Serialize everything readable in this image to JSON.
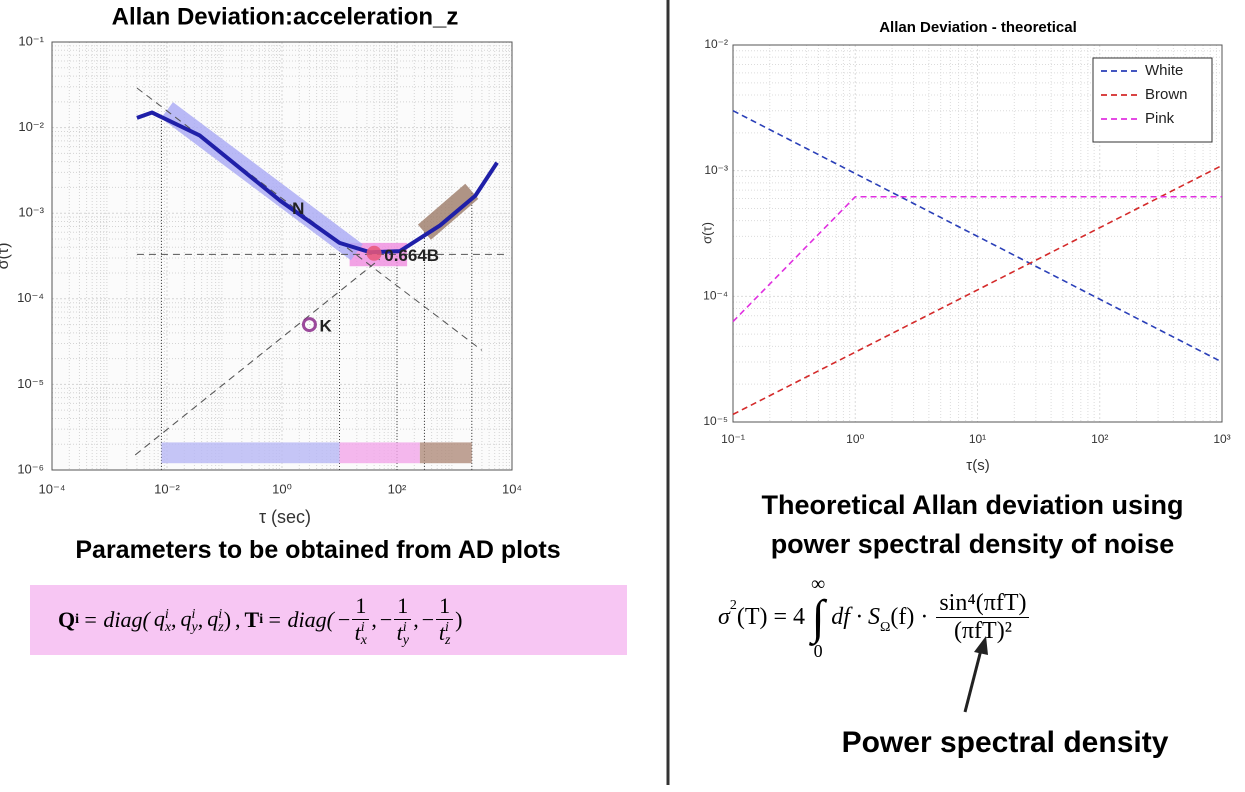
{
  "chart_data": [
    {
      "type": "line",
      "title": "Allan Deviation:acceleration_z",
      "xlabel": "τ (sec)",
      "ylabel": "σ(τ)",
      "xscale": "log",
      "yscale": "log",
      "grid": true,
      "minor_grid": true,
      "xlim": [
        0.0001,
        10000
      ],
      "ylim": [
        1e-06,
        0.1
      ],
      "xticks": [
        {
          "value": 0.0001,
          "label": "10⁻⁴"
        },
        {
          "value": 0.01,
          "label": "10⁻²"
        },
        {
          "value": 1,
          "label": "10⁰"
        },
        {
          "value": 100,
          "label": "10²"
        },
        {
          "value": 10000,
          "label": "10⁴"
        }
      ],
      "yticks": [
        {
          "value": 1e-06,
          "label": "10⁻⁶"
        },
        {
          "value": 1e-05,
          "label": "10⁻⁵"
        },
        {
          "value": 0.0001,
          "label": "10⁻⁴"
        },
        {
          "value": 0.001,
          "label": "10⁻³"
        },
        {
          "value": 0.01,
          "label": "10⁻²"
        },
        {
          "value": 0.1,
          "label": "10⁻¹"
        }
      ],
      "series": [
        {
          "color": "#1f1fa8",
          "x": [
            0.003,
            0.0055,
            0.037,
            0.93,
            10,
            34,
            112,
            560,
            2300,
            5500
          ],
          "values": [
            0.013,
            0.015,
            0.0081,
            0.0014,
            0.00045,
            0.00035,
            0.00036,
            0.00072,
            0.0016,
            0.0039
          ]
        }
      ],
      "reference_lines": [
        {
          "x": [
            0.003,
            3000
          ],
          "values": [
            0.029,
            2.5e-05
          ]
        },
        {
          "x": [
            0.003,
            8000
          ],
          "values": [
            0.00033,
            0.00033
          ]
        },
        {
          "x": [
            0.0028,
            50
          ],
          "values": [
            1.5e-06,
            0.00029
          ]
        }
      ],
      "vertical_guides": [
        {
          "x": 0.008,
          "values": [
            1e-06,
            0.014
          ]
        },
        {
          "x": 10,
          "values": [
            1e-06,
            0.00045
          ]
        },
        {
          "x": 100,
          "values": [
            1e-06,
            0.00035
          ]
        },
        {
          "x": 300,
          "values": [
            1e-06,
            0.0006
          ]
        },
        {
          "x": 2000,
          "values": [
            1e-06,
            0.0018
          ]
        }
      ],
      "highlight_bands": [
        {
          "x": [
            0.01,
            20
          ],
          "values": [
            0.016,
            0.00035
          ],
          "color": "#a9a9f5"
        },
        {
          "x": [
            300,
            2000
          ],
          "values": [
            0.0006,
            0.0018
          ],
          "color": "#9c7a68"
        }
      ],
      "highlight_boxes": [
        {
          "x": [
            15,
            150
          ],
          "values": [
            0.00024,
            0.00045
          ],
          "color": "#f08ce0"
        },
        {
          "x": [
            0.008,
            10
          ],
          "values": [
            1.2e-06,
            2.1e-06
          ],
          "color": "#b8b8f5"
        },
        {
          "x": [
            10,
            250
          ],
          "values": [
            1.2e-06,
            2.1e-06
          ],
          "color": "#f3a6ea"
        },
        {
          "x": [
            250,
            2000
          ],
          "values": [
            1.2e-06,
            2.1e-06
          ],
          "color": "#b08c7c"
        }
      ],
      "markers": [
        {
          "x": 40,
          "y": 0.00034,
          "color": "#e8587a"
        },
        {
          "x": 3,
          "y": 5e-05,
          "color": "#8a2a8a"
        }
      ],
      "annotations": [
        {
          "text": "N",
          "x": 1.5,
          "y": 0.0011
        },
        {
          "text": "0.664B",
          "x": 60,
          "y": 0.00031
        },
        {
          "text": "K",
          "x": 4.5,
          "y": 4.7e-05
        }
      ]
    },
    {
      "type": "line",
      "title": "Allan Deviation - theoretical",
      "xlabel": "τ(s)",
      "ylabel": "σ(τ)",
      "xscale": "log",
      "yscale": "log",
      "grid": true,
      "minor_grid": true,
      "legend": "upper right",
      "linestyle": "dashed",
      "xlim": [
        0.1,
        1000
      ],
      "ylim": [
        1e-05,
        0.01
      ],
      "xticks": [
        {
          "value": 0.1,
          "label": "10⁻¹"
        },
        {
          "value": 1,
          "label": "10⁰"
        },
        {
          "value": 10,
          "label": "10¹"
        },
        {
          "value": 100,
          "label": "10²"
        },
        {
          "value": 1000,
          "label": "10³"
        }
      ],
      "yticks": [
        {
          "value": 1e-05,
          "label": "10⁻⁵"
        },
        {
          "value": 0.0001,
          "label": "10⁻⁴"
        },
        {
          "value": 0.001,
          "label": "10⁻³"
        },
        {
          "value": 0.01,
          "label": "10⁻²"
        }
      ],
      "series": [
        {
          "name": "White",
          "color": "#2a3fb8",
          "x": [
            0.1,
            1000
          ],
          "values": [
            0.003,
            3e-05
          ]
        },
        {
          "name": "Brown",
          "color": "#d42a2a",
          "x": [
            0.1,
            1000
          ],
          "values": [
            1.15e-05,
            0.0011
          ]
        },
        {
          "name": "Pink",
          "color": "#e030e0",
          "x": [
            0.1,
            1,
            1000
          ],
          "values": [
            6.3e-05,
            0.00062,
            0.00062
          ]
        }
      ]
    }
  ],
  "captions": {
    "left": "Parameters to be obtained from AD plots",
    "right_line1": "Theoretical Allan deviation using",
    "right_line2": "power spectral density of noise",
    "arrow_label": "Power spectral density"
  },
  "formula_left": {
    "Q": "Q",
    "Q_sub": "i",
    "T": "T",
    "T_sub": "i",
    "diag_open": "= diag(",
    "comma": ",",
    "close": ")",
    "minus": "−",
    "one": "1",
    "q_terms": [
      {
        "base": "q",
        "sub": "x",
        "sup": "i"
      },
      {
        "base": "q",
        "sub": "y",
        "sup": "i"
      },
      {
        "base": "q",
        "sub": "z",
        "sup": "i"
      }
    ],
    "t_terms": [
      {
        "base": "t",
        "sub": "x",
        "sup": "i"
      },
      {
        "base": "t",
        "sub": "y",
        "sup": "i"
      },
      {
        "base": "t",
        "sub": "z",
        "sup": "i"
      }
    ]
  },
  "formula_right": {
    "sigma": "σ",
    "sigma_sup": "2",
    "lhs_rest": "(T) = 4",
    "integral": "∫",
    "upper": "∞",
    "lower": "0",
    "body": "df · S",
    "S_sub": "Ω",
    "body2": "(f) ·",
    "numerator": "sin⁴(πfT)",
    "denominator": "(πfT)²"
  }
}
